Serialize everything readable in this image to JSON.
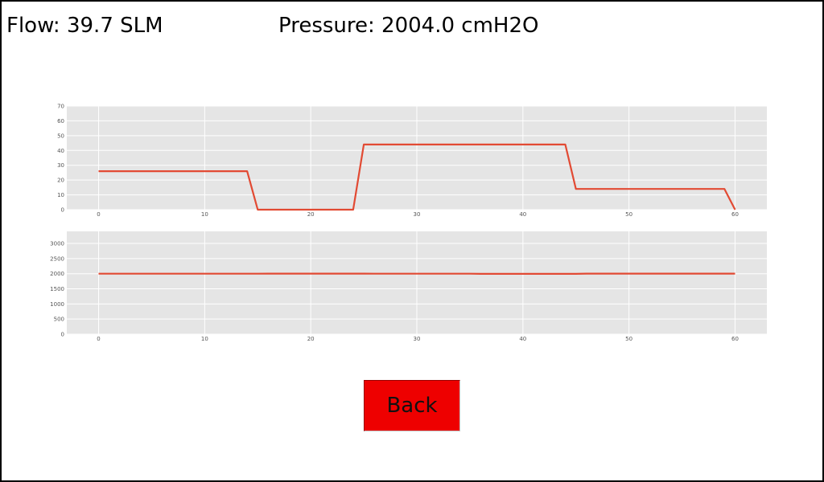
{
  "readouts": {
    "flow_label": "Flow:",
    "flow_value": "39.7",
    "flow_unit": "SLM",
    "pressure_label": "Pressure:",
    "pressure_value": "2004.0",
    "pressure_unit": "cmH2O"
  },
  "buttons": {
    "back_label": "Back",
    "back_color": "#ee0000"
  },
  "style": {
    "line_color": "#e24a33",
    "plot_background": "#e5e5e5",
    "grid_color": "#ffffff"
  },
  "chart_data": [
    {
      "type": "line",
      "title": "",
      "xlabel": "",
      "ylabel": "",
      "xlim": [
        -3,
        63
      ],
      "ylim": [
        0,
        70
      ],
      "xticks": [
        0,
        10,
        20,
        30,
        40,
        50,
        60
      ],
      "yticks": [
        0,
        10,
        20,
        30,
        40,
        50,
        60,
        70
      ],
      "grid": true,
      "series": [
        {
          "x": [
            0,
            14,
            15,
            24,
            25,
            44,
            45,
            59,
            60
          ],
          "values": [
            26,
            26,
            0,
            0,
            44,
            44,
            14,
            14,
            0
          ]
        }
      ]
    },
    {
      "type": "line",
      "title": "",
      "xlabel": "",
      "ylabel": "",
      "xlim": [
        -3,
        63
      ],
      "ylim": [
        0,
        3400
      ],
      "xticks": [
        0,
        10,
        20,
        30,
        40,
        50,
        60
      ],
      "yticks": [
        0,
        500,
        1000,
        1500,
        2000,
        2500,
        3000
      ],
      "grid": true,
      "series": [
        {
          "x": [
            0,
            15,
            16,
            25,
            26,
            35,
            36,
            45,
            46,
            60
          ],
          "values": [
            2000,
            2000,
            2004,
            2004,
            2000,
            2000,
            1996,
            1996,
            2004,
            2004
          ]
        }
      ]
    }
  ]
}
